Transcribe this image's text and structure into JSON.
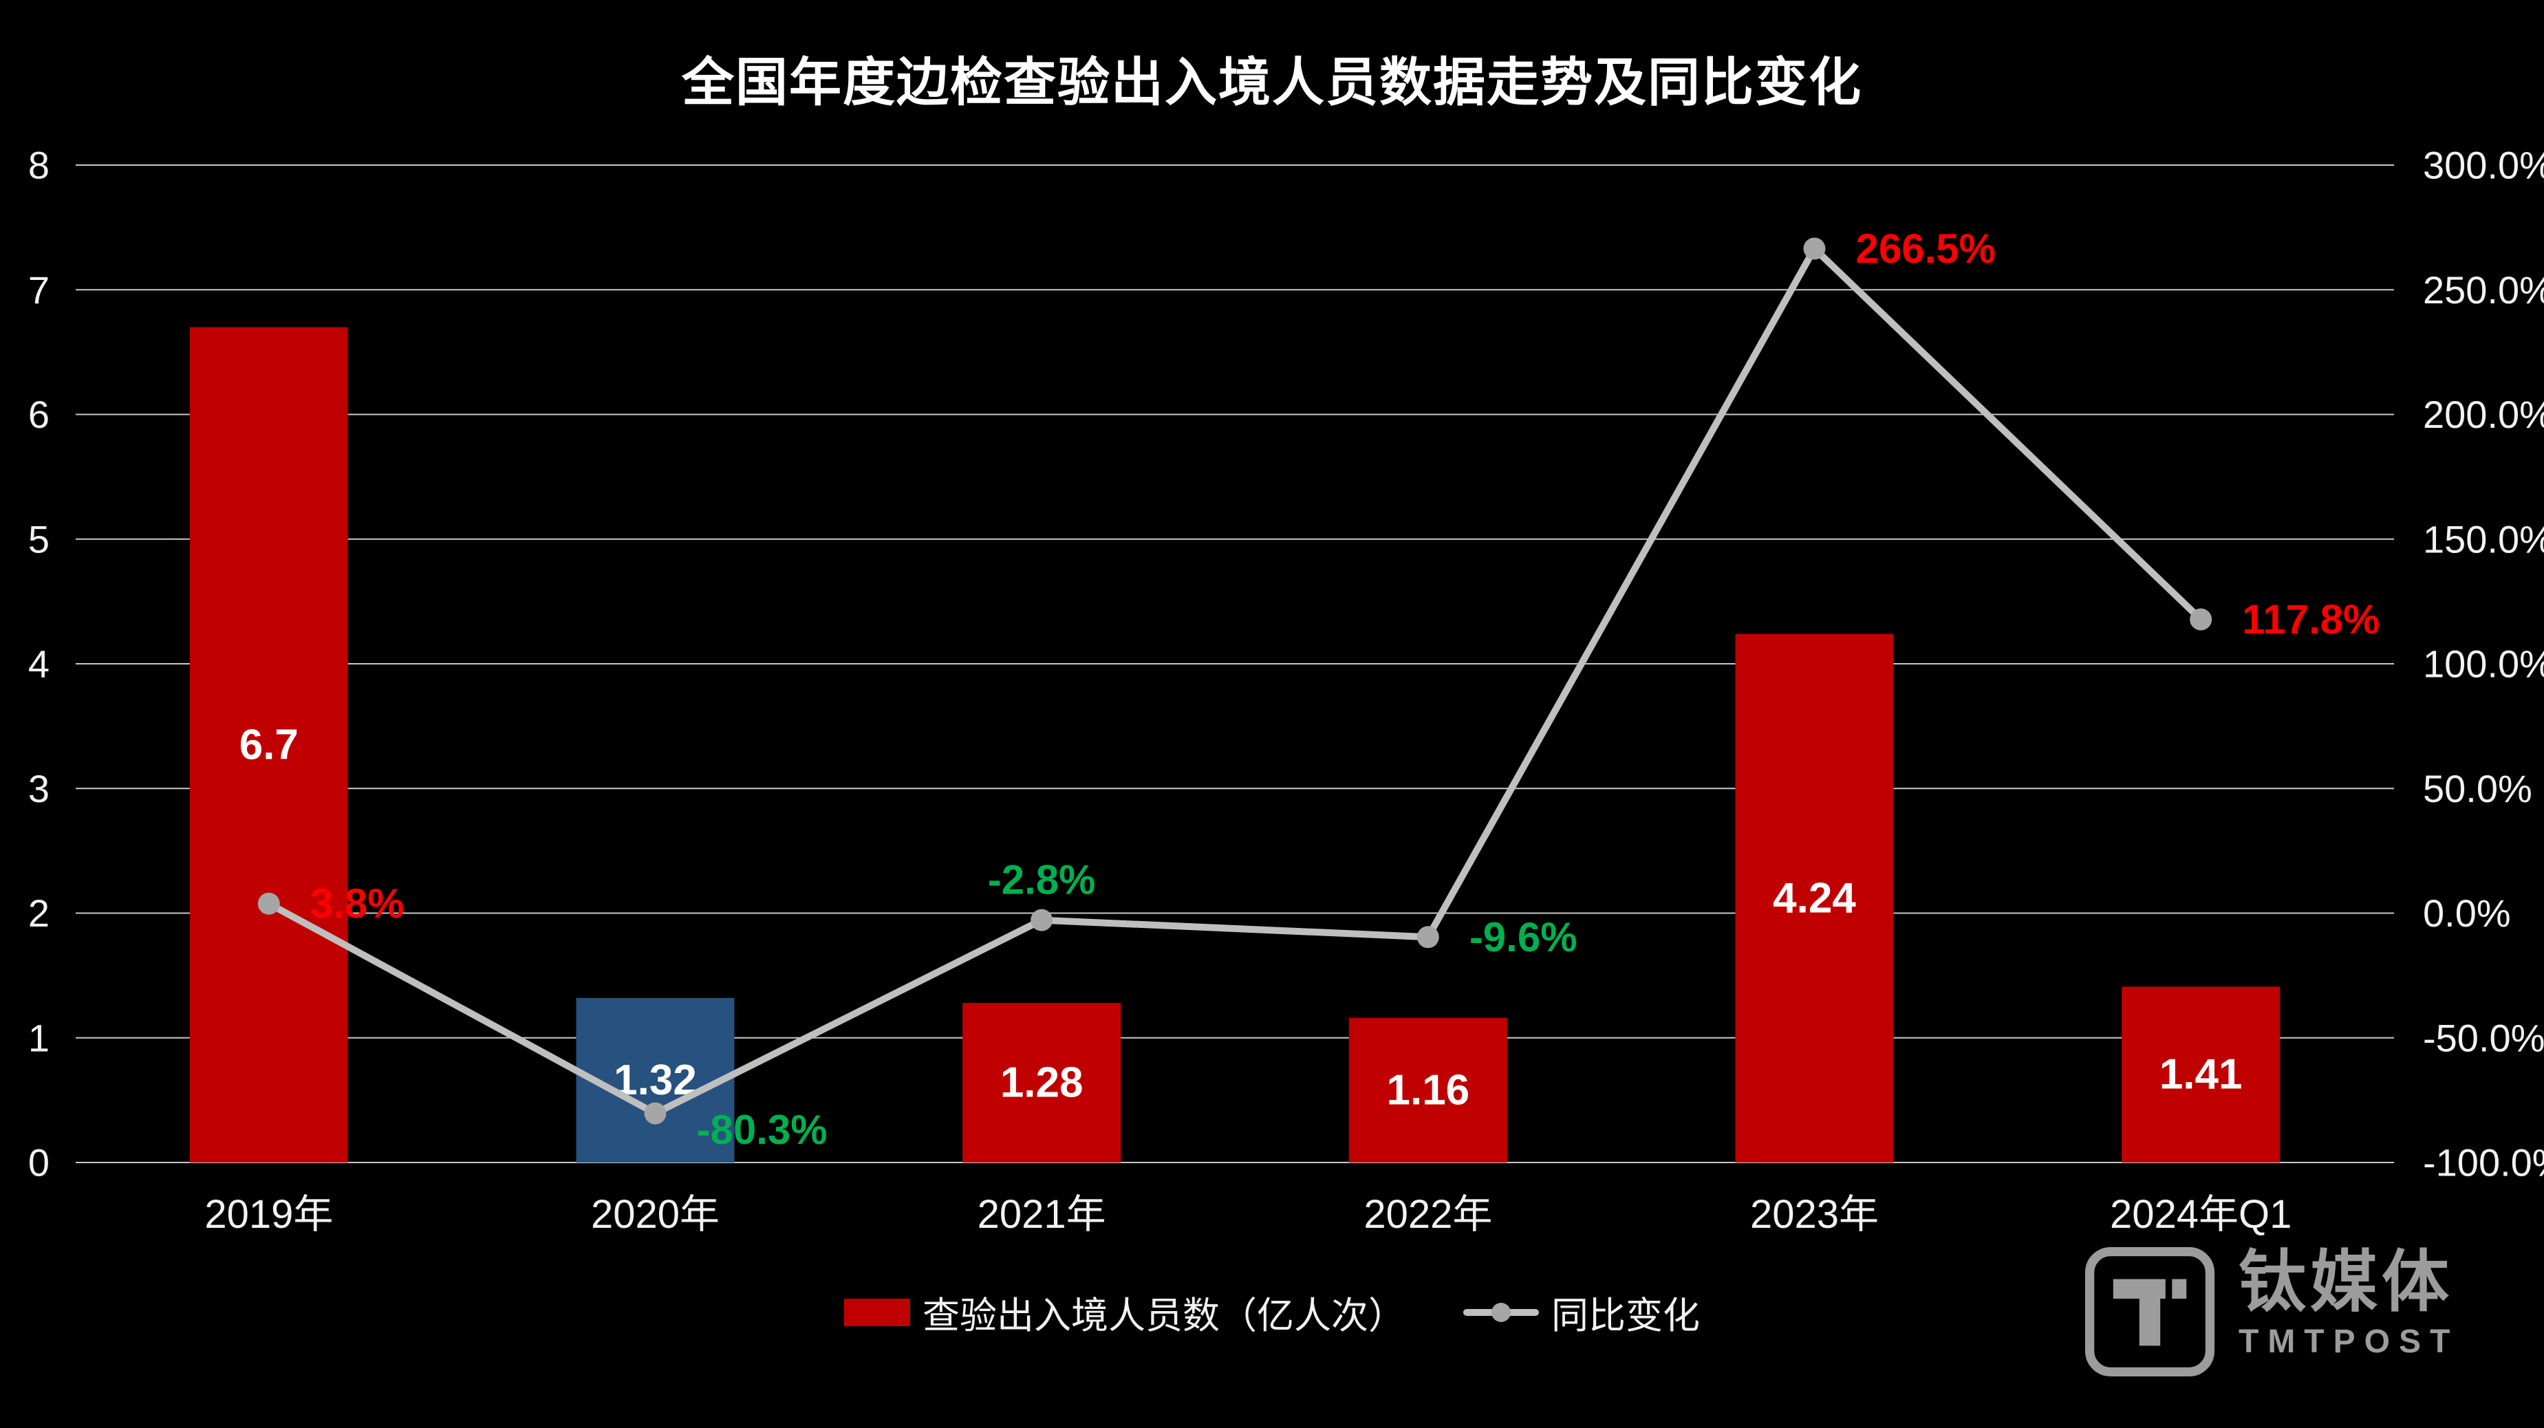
{
  "chart_data": {
    "type": "combo-bar-line",
    "title": "全国年度边检查验出入境人员数据走势及同比变化",
    "categories": [
      "2019年",
      "2020年",
      "2021年",
      "2022年",
      "2023年",
      "2024年Q1"
    ],
    "series": [
      {
        "name": "查验出入境人员数（亿人次）",
        "type": "bar",
        "axis": "left",
        "values": [
          6.7,
          1.32,
          1.28,
          1.16,
          4.24,
          1.41
        ],
        "labels": [
          "6.7",
          "1.32",
          "1.28",
          "1.16",
          "4.24",
          "1.41"
        ],
        "label_color": "#ffffff",
        "colors": [
          "#c00000",
          "#27517e",
          "#c00000",
          "#c00000",
          "#c00000",
          "#c00000"
        ]
      },
      {
        "name": "同比变化",
        "type": "line",
        "axis": "right",
        "color": "#bfbfbf",
        "marker_color": "#a6a6a6",
        "values": [
          3.8,
          -80.3,
          -2.8,
          -9.6,
          266.5,
          117.8
        ],
        "labels": [
          "3.8%",
          "-80.3%",
          "-2.8%",
          "-9.6%",
          "266.5%",
          "117.8%"
        ],
        "label_colors": [
          "#ff0000",
          "#00b050",
          "#00b050",
          "#00b050",
          "#ff0000",
          "#ff0000"
        ],
        "label_pos": [
          "right",
          "right-down",
          "above",
          "right",
          "right",
          "right"
        ]
      }
    ],
    "left_axis": {
      "min": 0,
      "max": 8,
      "ticks": [
        "0",
        "1",
        "2",
        "3",
        "4",
        "5",
        "6",
        "7",
        "8"
      ]
    },
    "right_axis": {
      "min": -100,
      "max": 300,
      "ticks": [
        "-100.0%",
        "-50.0%",
        "0.0%",
        "50.0%",
        "100.0%",
        "150.0%",
        "200.0%",
        "250.0%",
        "300.0%"
      ]
    },
    "grid": true,
    "legend_position": "bottom",
    "background": "#000000",
    "grid_color": "#c9c9c9",
    "axis_text_color": "#f2f2f2"
  },
  "watermark": {
    "name": "钛媒体",
    "sub": "TMTPOST"
  }
}
